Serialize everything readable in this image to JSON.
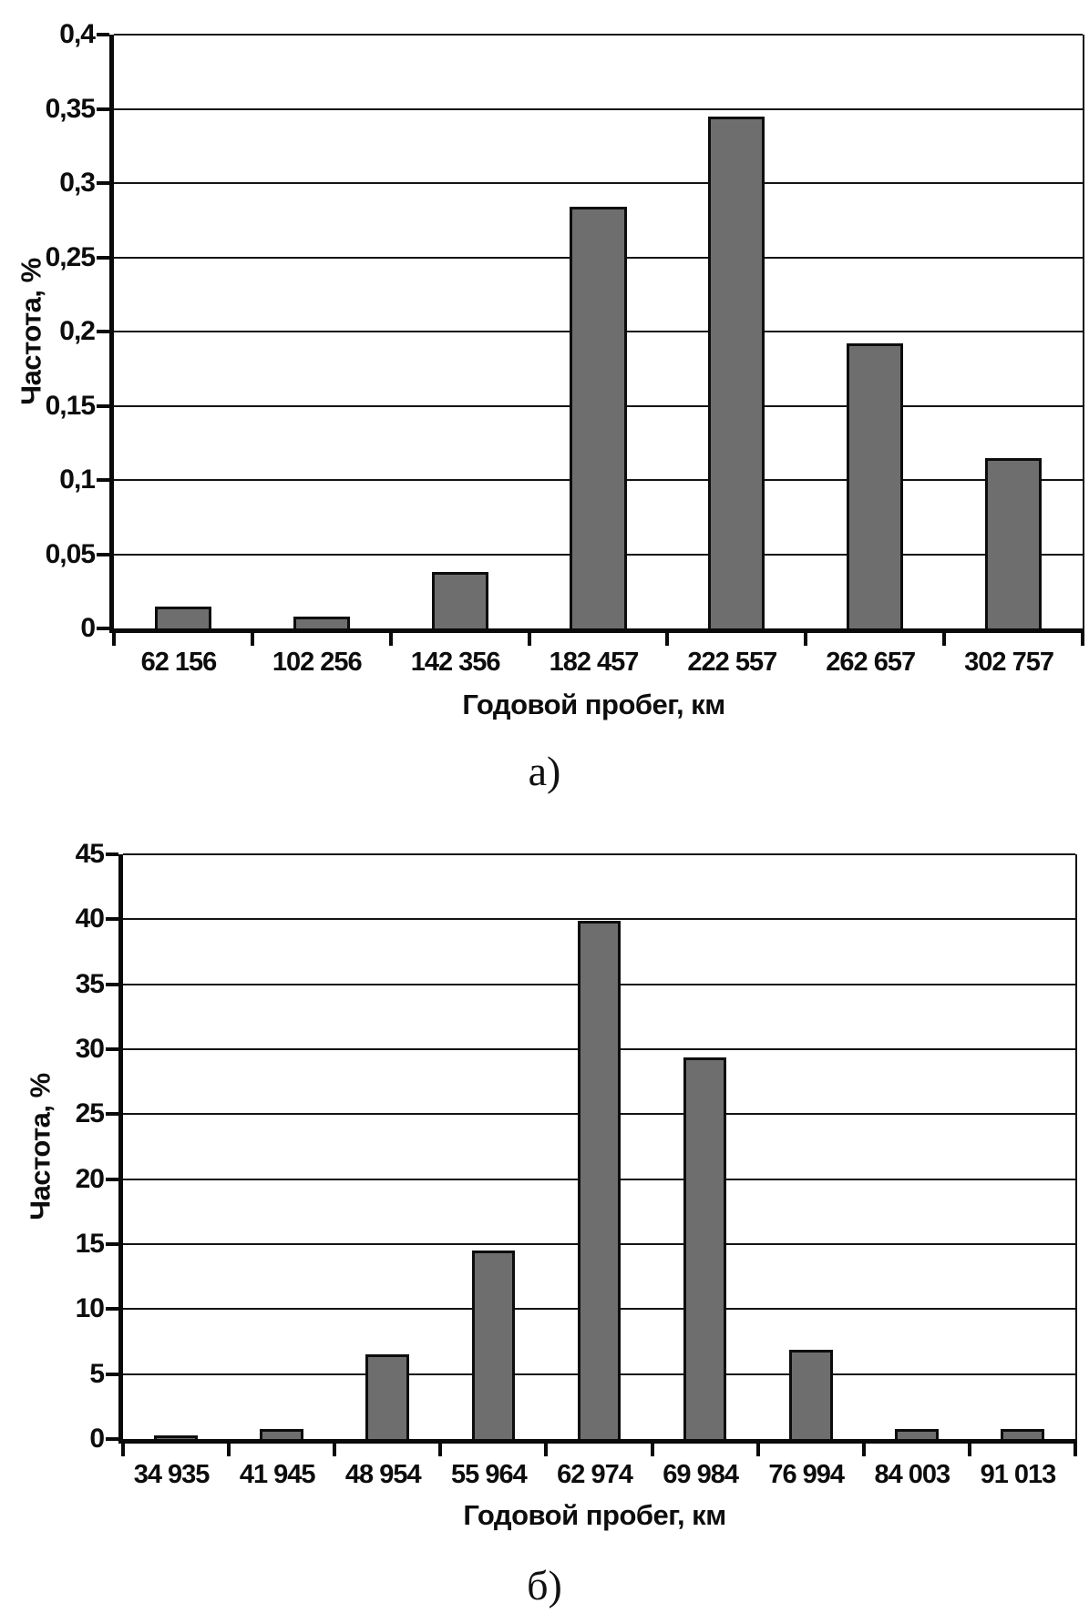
{
  "figure": {
    "background_color": "#ffffff",
    "bar_fill_color": "#6e6e6e",
    "bar_border_color": "#0d0d0d",
    "axis_color": "#0a0a0a",
    "gridline_color": "#141414"
  },
  "chart_data": [
    {
      "type": "bar",
      "caption": "а)",
      "title": "",
      "xlabel": "Годовой пробег, км",
      "ylabel": "Частота, %",
      "categories": [
        "62 156",
        "102 256",
        "142 356",
        "182 457",
        "222 557",
        "262 657",
        "302 757"
      ],
      "values": [
        0.015,
        0.008,
        0.038,
        0.284,
        0.345,
        0.192,
        0.115
      ],
      "ylim": [
        0,
        0.4
      ],
      "ytick_step": 0.05,
      "ytick_labels": [
        "0",
        "0,05",
        "0,1",
        "0,15",
        "0,2",
        "0,25",
        "0,3",
        "0,35",
        "0,4"
      ],
      "grid": true,
      "legend": "none",
      "bar_color": "#6e6e6e",
      "bar_border": "#0d0d0d"
    },
    {
      "type": "bar",
      "caption": "б)",
      "title": "",
      "xlabel": "Годовой пробег, км",
      "ylabel": "Частота, %",
      "categories": [
        "34 935",
        "41 945",
        "48 954",
        "55 964",
        "62 974",
        "69 984",
        "76 994",
        "84 003",
        "91 013"
      ],
      "values": [
        0.3,
        0.8,
        6.5,
        14.5,
        39.9,
        29.4,
        6.9,
        0.8,
        0.8
      ],
      "ylim": [
        0,
        45
      ],
      "ytick_step": 5,
      "ytick_labels": [
        "0",
        "5",
        "10",
        "15",
        "20",
        "25",
        "30",
        "35",
        "40",
        "45"
      ],
      "grid": true,
      "legend": "none",
      "bar_color": "#6e6e6e",
      "bar_border": "#0d0d0d"
    }
  ]
}
